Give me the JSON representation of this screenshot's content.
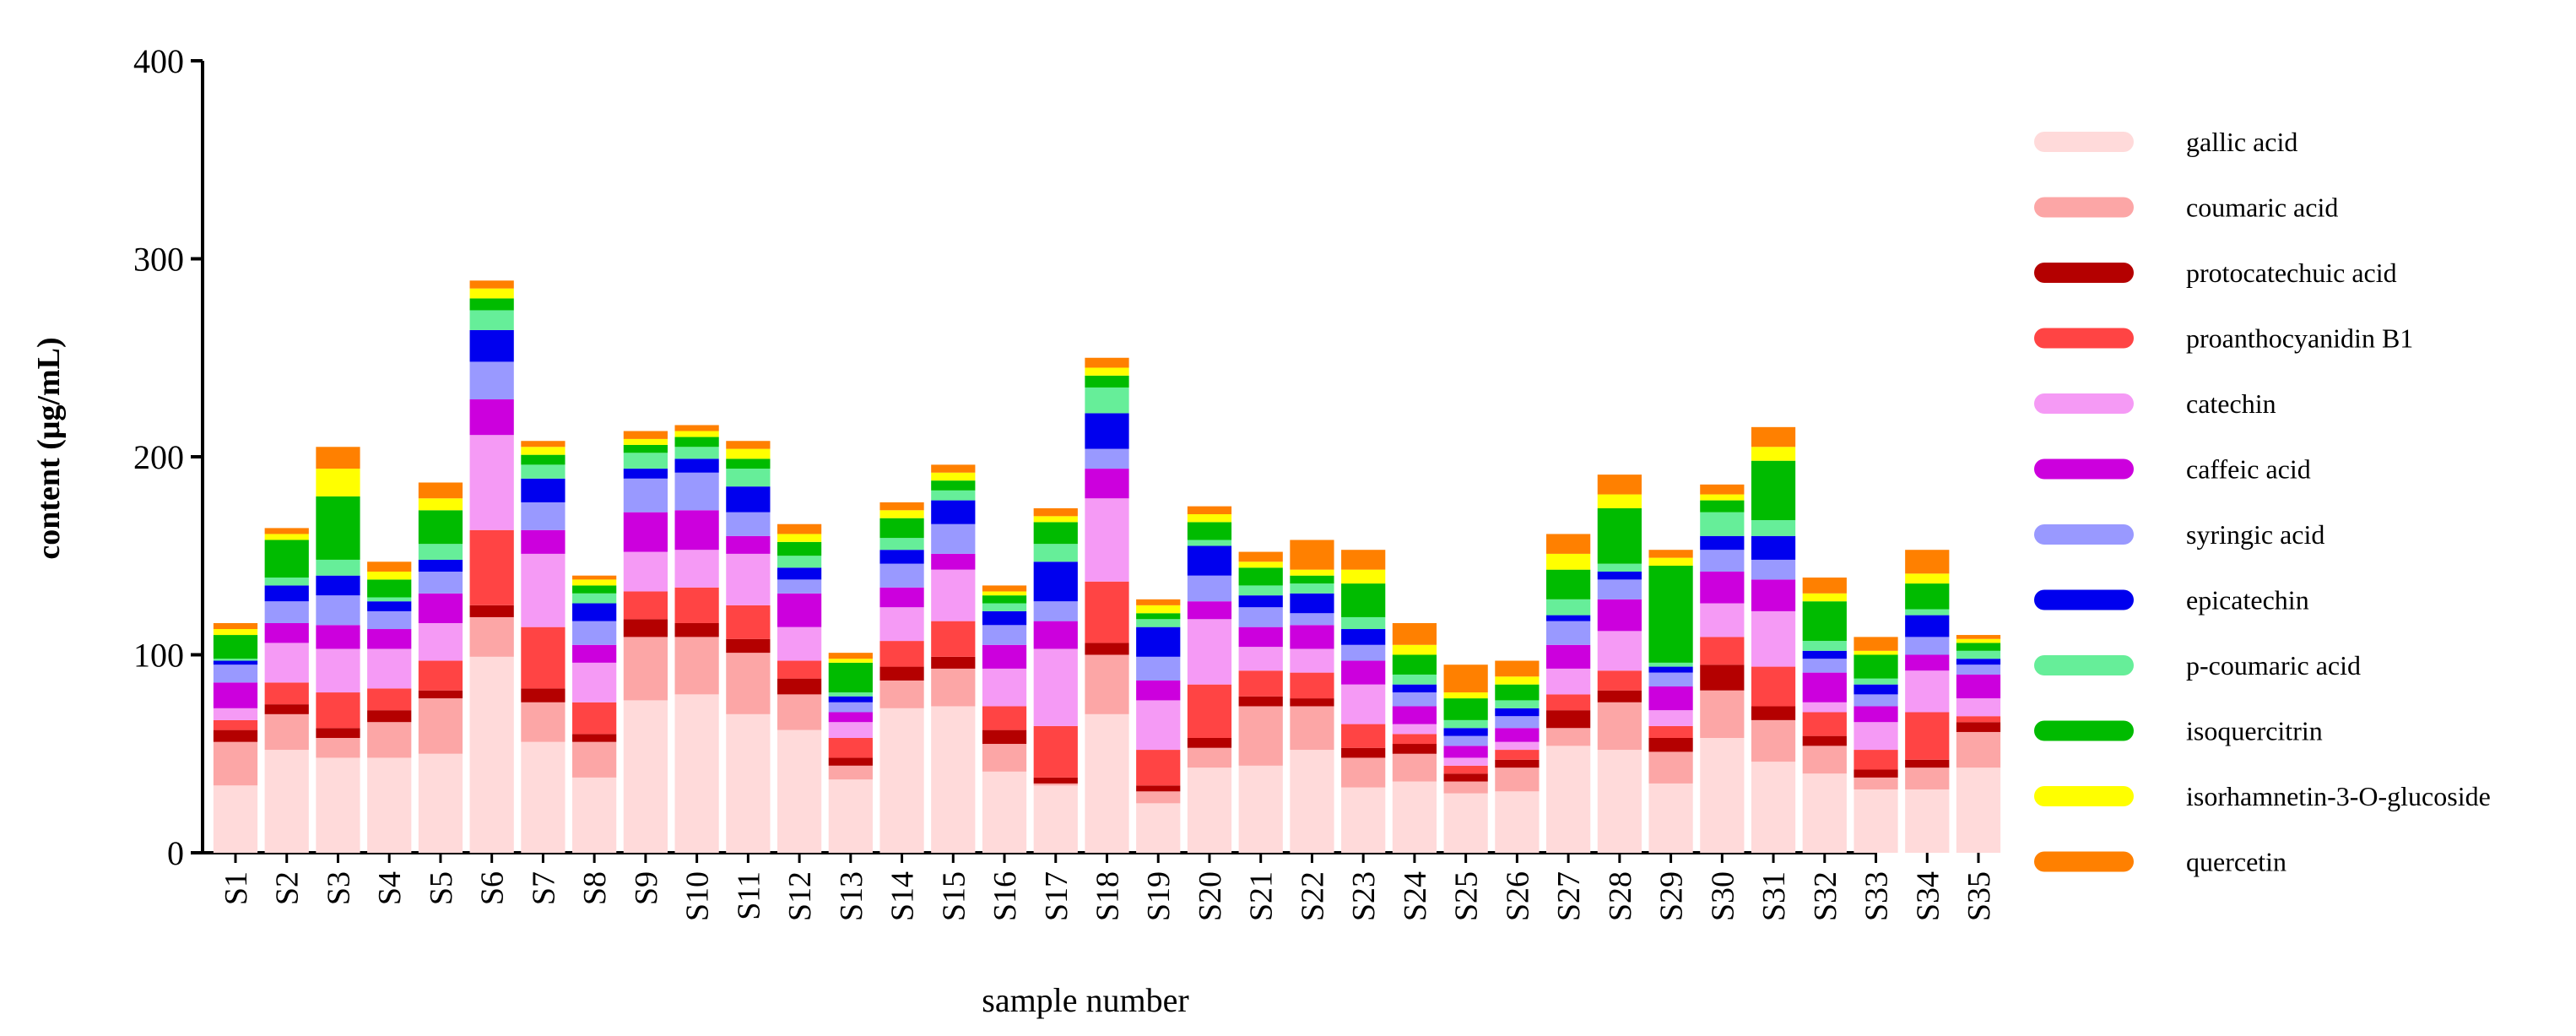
{
  "chart_data": {
    "type": "bar",
    "stacked": true,
    "xlabel": "sample number",
    "ylabel": "content (μg/mL)",
    "ylim": [
      0,
      400
    ],
    "yticks": [
      0,
      100,
      200,
      300,
      400
    ],
    "legend_position": "right",
    "grid": false,
    "categories": [
      "S1",
      "S2",
      "S3",
      "S4",
      "S5",
      "S6",
      "S7",
      "S8",
      "S9",
      "S10",
      "S11",
      "S12",
      "S13",
      "S14",
      "S15",
      "S16",
      "S17",
      "S18",
      "S19",
      "S20",
      "S21",
      "S22",
      "S23",
      "S24",
      "S25",
      "S26",
      "S27",
      "S28",
      "S29",
      "S30",
      "S31",
      "S32",
      "S33",
      "S34",
      "S35"
    ],
    "series": [
      {
        "name": "gallic acid",
        "color": "#FFDADA",
        "values": [
          34,
          52,
          48,
          48,
          50,
          99,
          56,
          38,
          77,
          80,
          70,
          62,
          37,
          73,
          74,
          41,
          34,
          70,
          25,
          43,
          44,
          52,
          33,
          36,
          30,
          31,
          54,
          52,
          35,
          58,
          46,
          40,
          32,
          32,
          43
        ]
      },
      {
        "name": " coumaric acid",
        "color": "#FCA6A6",
        "values": [
          22,
          18,
          10,
          18,
          28,
          20,
          20,
          18,
          32,
          29,
          31,
          18,
          7,
          14,
          19,
          14,
          1,
          30,
          6,
          10,
          30,
          22,
          15,
          14,
          6,
          12,
          9,
          24,
          16,
          24,
          21,
          14,
          6,
          11,
          18
        ]
      },
      {
        "name": "protocatechuic acid",
        "color": "#B40000",
        "values": [
          6,
          5,
          5,
          6,
          4,
          6,
          7,
          4,
          9,
          7,
          7,
          8,
          4,
          7,
          6,
          7,
          3,
          6,
          3,
          5,
          5,
          4,
          5,
          5,
          4,
          4,
          9,
          6,
          7,
          13,
          7,
          5,
          4,
          4,
          5
        ]
      },
      {
        "name": "proanthocyanidin B1",
        "color": "#FF4444",
        "values": [
          5,
          11,
          18,
          11,
          15,
          38,
          31,
          16,
          14,
          18,
          17,
          9,
          10,
          13,
          18,
          12,
          26,
          31,
          18,
          27,
          13,
          13,
          12,
          5,
          4,
          5,
          8,
          10,
          6,
          14,
          20,
          12,
          10,
          24,
          3
        ]
      },
      {
        "name": "catechin",
        "color": "#F59AF5",
        "values": [
          6,
          20,
          22,
          20,
          19,
          48,
          37,
          20,
          20,
          19,
          26,
          17,
          8,
          17,
          26,
          19,
          39,
          42,
          25,
          33,
          12,
          12,
          20,
          5,
          4,
          4,
          13,
          20,
          8,
          17,
          28,
          5,
          14,
          21,
          9
        ]
      },
      {
        "name": "caffeic acid",
        "color": "#CC00DD",
        "values": [
          13,
          10,
          12,
          10,
          15,
          18,
          12,
          9,
          20,
          20,
          9,
          17,
          5,
          10,
          8,
          12,
          14,
          15,
          10,
          9,
          10,
          12,
          12,
          9,
          6,
          7,
          12,
          16,
          12,
          16,
          16,
          15,
          8,
          8,
          12
        ]
      },
      {
        "name": "syringic acid",
        "color": "#9999FF",
        "values": [
          9,
          11,
          15,
          9,
          11,
          19,
          14,
          12,
          17,
          19,
          12,
          7,
          5,
          12,
          15,
          10,
          10,
          10,
          12,
          13,
          10,
          6,
          8,
          7,
          5,
          6,
          12,
          10,
          7,
          11,
          10,
          7,
          6,
          9,
          5
        ]
      },
      {
        "name": "epicatechin",
        "color": "#0000EE",
        "values": [
          2,
          8,
          10,
          5,
          6,
          16,
          12,
          9,
          5,
          7,
          13,
          6,
          3,
          7,
          12,
          7,
          20,
          18,
          15,
          15,
          6,
          10,
          8,
          4,
          4,
          4,
          3,
          4,
          3,
          7,
          12,
          4,
          5,
          11,
          3
        ]
      },
      {
        "name": "p-coumaric acid",
        "color": "#66EE99",
        "values": [
          1,
          4,
          8,
          2,
          8,
          10,
          7,
          5,
          8,
          6,
          9,
          6,
          2,
          6,
          5,
          4,
          9,
          13,
          4,
          3,
          5,
          5,
          6,
          5,
          4,
          4,
          8,
          4,
          2,
          12,
          8,
          5,
          3,
          3,
          4
        ]
      },
      {
        "name": "isoquercitrin",
        "color": "#00BB00",
        "values": [
          12,
          19,
          32,
          9,
          17,
          6,
          5,
          4,
          4,
          5,
          5,
          7,
          15,
          10,
          5,
          4,
          11,
          6,
          3,
          9,
          9,
          4,
          17,
          10,
          11,
          8,
          15,
          28,
          49,
          6,
          30,
          20,
          12,
          13,
          4
        ]
      },
      {
        "name": "isorhamnetin-3-O-glucoside",
        "color": "#FFFF00",
        "values": [
          3,
          3,
          14,
          4,
          6,
          5,
          4,
          3,
          3,
          3,
          5,
          4,
          2,
          4,
          4,
          2,
          3,
          4,
          4,
          4,
          3,
          3,
          7,
          5,
          3,
          4,
          8,
          7,
          4,
          3,
          7,
          4,
          2,
          5,
          2
        ]
      },
      {
        "name": "quercetin",
        "color": "#FF8000",
        "values": [
          3,
          3,
          11,
          5,
          8,
          4,
          3,
          2,
          4,
          3,
          4,
          5,
          3,
          4,
          4,
          3,
          4,
          5,
          3,
          4,
          5,
          15,
          10,
          11,
          14,
          8,
          10,
          10,
          4,
          5,
          10,
          8,
          7,
          12,
          2
        ]
      }
    ]
  }
}
